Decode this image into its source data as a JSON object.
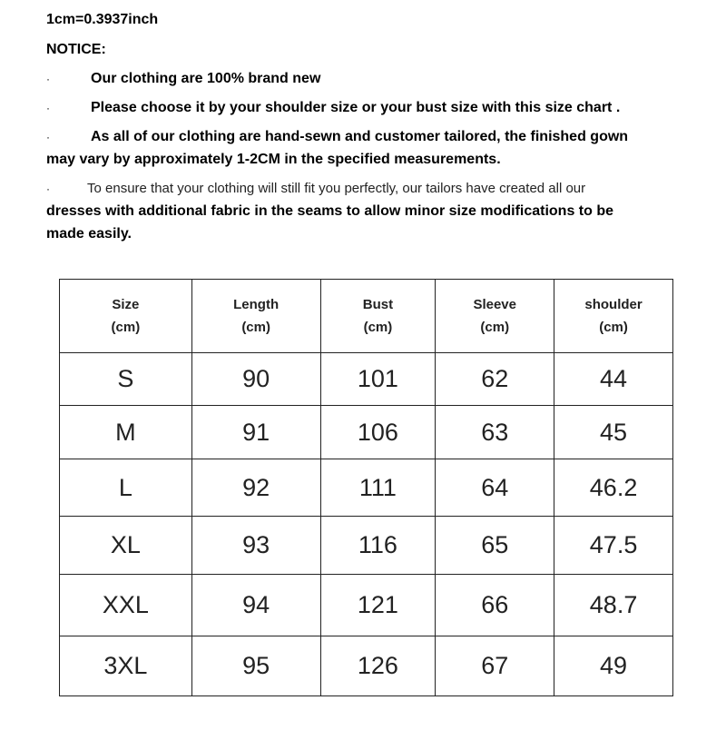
{
  "conversion": "1cm=0.3937inch",
  "notice_title": "NOTICE:",
  "bullet": "·",
  "notes": [
    "Our clothing are 100% brand new",
    "Please choose it by your shoulder size or your bust size with this size chart .",
    "As all of our clothing are hand-sewn and customer tailored, the finished gown",
    "may vary by approximately 1-2CM in the specified measurements.",
    "To ensure that your clothing will still fit you perfectly, our tailors have created all our",
    "dresses with additional fabric in the seams to allow minor size modifications to be",
    "made easily."
  ],
  "table": {
    "headers": [
      [
        "Size",
        "(cm)"
      ],
      [
        "Length",
        "(cm)"
      ],
      [
        "Bust",
        "(cm)"
      ],
      [
        "Sleeve",
        "(cm)"
      ],
      [
        "shoulder",
        "(cm)"
      ]
    ],
    "rows": [
      [
        "S",
        "90",
        "101",
        "62",
        "44"
      ],
      [
        "M",
        "91",
        "106",
        "63",
        "45"
      ],
      [
        "L",
        "92",
        "111",
        "64",
        "46.2"
      ],
      [
        "XL",
        "93",
        "116",
        "65",
        "47.5"
      ],
      [
        "XXL",
        "94",
        "121",
        "66",
        "48.7"
      ],
      [
        "3XL",
        "95",
        "126",
        "67",
        "49"
      ]
    ]
  }
}
